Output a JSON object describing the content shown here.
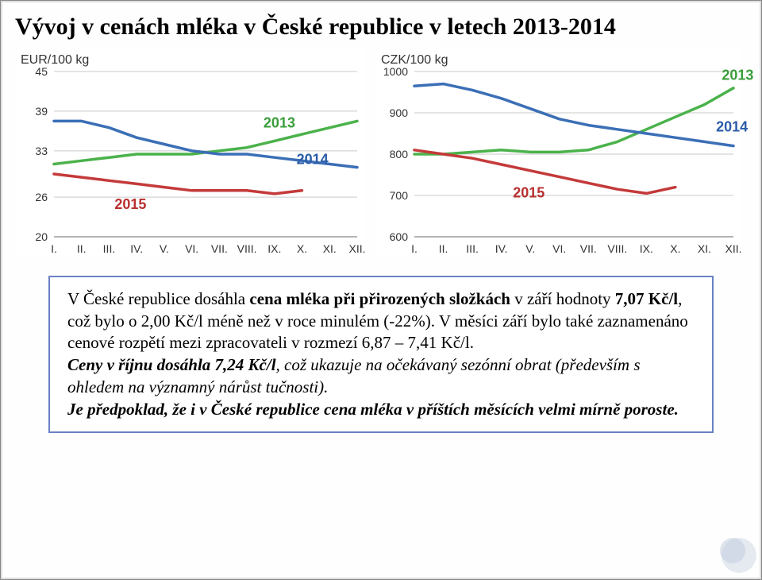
{
  "title": "Vývoj v cenách mléka v České republice v letech 2013-2014",
  "chart_left": {
    "type": "line",
    "unit_label": "EUR/100 kg",
    "xticks": [
      "I.",
      "II.",
      "III.",
      "IV.",
      "V.",
      "VI.",
      "VII.",
      "VIII.",
      "IX.",
      "X.",
      "XI.",
      "XII."
    ],
    "yticks": [
      20,
      26,
      33,
      39,
      45
    ],
    "ylim": [
      20,
      45
    ],
    "series": [
      {
        "name": "2013",
        "values": [
          31,
          31.5,
          32,
          32.5,
          32.5,
          32.5,
          33,
          33.5,
          34.5,
          35.5,
          36.5,
          37.5
        ],
        "color": "#4bb24b",
        "width": 3.5
      },
      {
        "name": "2014",
        "values": [
          37.5,
          37.5,
          36.5,
          35,
          34,
          33,
          32.5,
          32.5,
          32,
          31.5,
          31,
          30.5
        ],
        "color": "#3b6fb6",
        "width": 3.5
      },
      {
        "name": "2015",
        "values": [
          29.5,
          29,
          28.5,
          28,
          27.5,
          27,
          27,
          27,
          26.5,
          27,
          null,
          null
        ],
        "color": "#c43a3a",
        "width": 3.5
      }
    ],
    "labels": [
      {
        "text": "2013",
        "color": "#3a9e3a",
        "xi": 7.6,
        "y": 36.5,
        "fontsize": 18,
        "bold": true
      },
      {
        "text": "2014",
        "color": "#2a5da8",
        "xi": 8.8,
        "y": 31,
        "fontsize": 18,
        "bold": true
      },
      {
        "text": "2015",
        "color": "#b83030",
        "xi": 2.2,
        "y": 24.2,
        "fontsize": 18,
        "bold": true
      }
    ],
    "grid_color": "#c9c9c9",
    "axis_fontsize": 14,
    "axis_color": "#333",
    "background": "#ffffff"
  },
  "chart_right": {
    "type": "line",
    "unit_label": "CZK/100 kg",
    "xticks": [
      "I.",
      "II.",
      "III.",
      "IV.",
      "V.",
      "VI.",
      "VII.",
      "VIII.",
      "IX.",
      "X.",
      "XI.",
      "XII."
    ],
    "yticks": [
      600,
      700,
      800,
      900,
      1000
    ],
    "ylim": [
      600,
      1000
    ],
    "series": [
      {
        "name": "2013",
        "values": [
          800,
          800,
          805,
          810,
          805,
          805,
          810,
          830,
          860,
          890,
          920,
          960
        ],
        "color": "#4bb24b",
        "width": 3.5
      },
      {
        "name": "2014",
        "values": [
          965,
          970,
          955,
          935,
          910,
          885,
          870,
          860,
          850,
          840,
          830,
          820
        ],
        "color": "#3b6fb6",
        "width": 3.5
      },
      {
        "name": "2015",
        "values": [
          810,
          800,
          790,
          775,
          760,
          745,
          730,
          715,
          705,
          720,
          null,
          null
        ],
        "color": "#c43a3a",
        "width": 3.5
      }
    ],
    "labels": [
      {
        "text": "2013",
        "color": "#3a9e3a",
        "xi": 10.6,
        "y": 980,
        "fontsize": 18,
        "bold": true
      },
      {
        "text": "2014",
        "color": "#2a5da8",
        "xi": 10.4,
        "y": 855,
        "fontsize": 18,
        "bold": true
      },
      {
        "text": "2015",
        "color": "#b83030",
        "xi": 3.4,
        "y": 695,
        "fontsize": 18,
        "bold": true
      }
    ],
    "grid_color": "#c9c9c9",
    "axis_fontsize": 14,
    "axis_color": "#333",
    "background": "#ffffff"
  },
  "textbox": {
    "border_color": "#6a81c4",
    "p1_a": "V České republice dosáhla ",
    "p1_b": "cena mléka při přirozených složkách",
    "p1_c": " v září hodnoty ",
    "p1_d": "7,07 Kč/l",
    "p1_e": ", což bylo o  2,00  Kč/l méně než v roce minulém (-22%). V měsíci září bylo také zaznamenáno cenové rozpětí mezi zpracovateli v rozmezí 6,87 – 7,41 Kč/l.",
    "p2_a": "Ceny v říjnu dosáhla 7,24 Kč/l",
    "p2_b": ", což ukazuje na očekávaný sezónní obrat (především s ohledem na významný nárůst tučnosti).",
    "p3": "Je předpoklad, že i v České republice cena mléka v příštích měsících velmi mírně poroste."
  },
  "decor": {
    "circles": [
      {
        "r": 22,
        "fill": "#cfd9e6",
        "opacity": 0.55
      },
      {
        "r": 16,
        "fill": "#b9c7da",
        "opacity": 0.45
      }
    ]
  }
}
